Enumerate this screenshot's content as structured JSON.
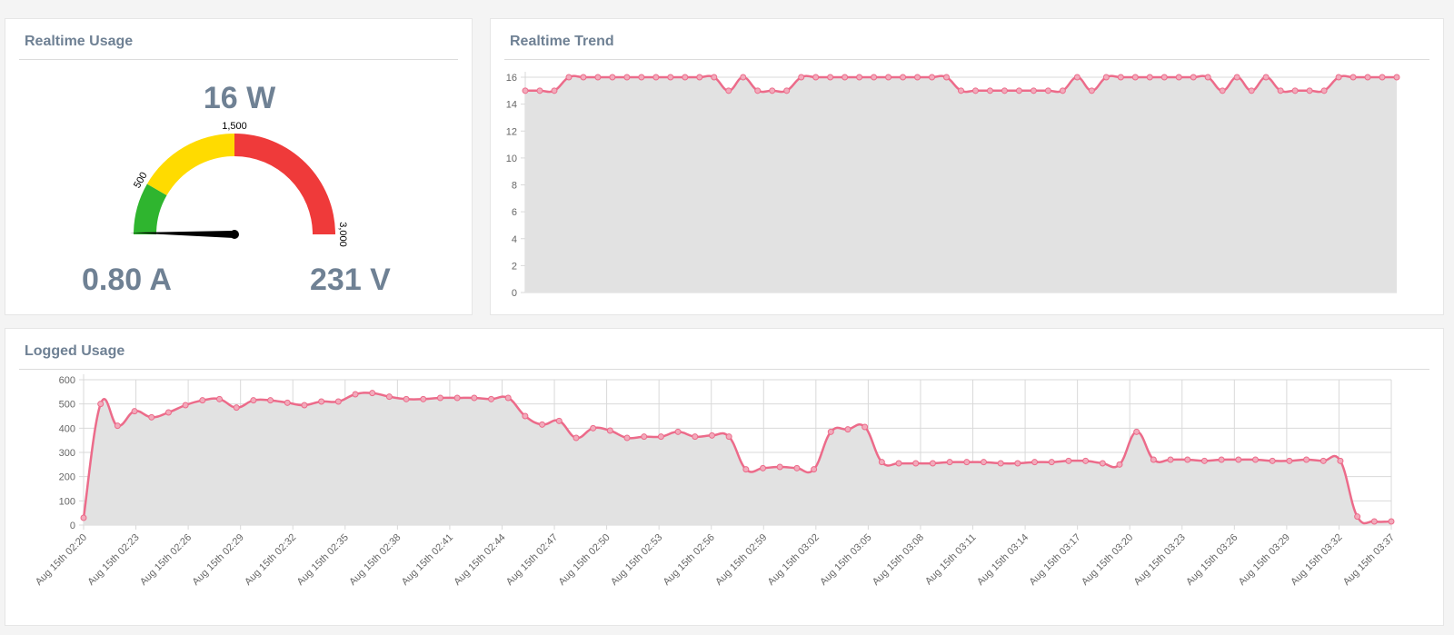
{
  "panels": {
    "usage": {
      "title": "Realtime Usage",
      "power": "16 W",
      "current": "0.80 A",
      "voltage": "231 V",
      "gauge": {
        "min": 0,
        "max": 3000,
        "value": 16,
        "bands": [
          {
            "from": 0,
            "to": 500,
            "color": "#2fb52f"
          },
          {
            "from": 500,
            "to": 1500,
            "color": "#ffdb00"
          },
          {
            "from": 1500,
            "to": 3000,
            "color": "#ef3a3a"
          }
        ],
        "labels": [
          "500",
          "1,500",
          "3,000"
        ]
      }
    },
    "trend": {
      "title": "Realtime Trend"
    },
    "logged": {
      "title": "Logged Usage"
    }
  },
  "colors": {
    "line": "#ec6b8a",
    "fill": "#e2e2e2",
    "grid": "#d9d9d9",
    "title": "#6f8194"
  },
  "chart_data": [
    {
      "type": "area",
      "ylim": [
        0,
        16
      ],
      "yticks": [
        "0",
        "2",
        "4",
        "6",
        "8",
        "10",
        "12",
        "14",
        "16"
      ],
      "values": [
        15,
        15,
        15,
        16,
        16,
        16,
        16,
        16,
        16,
        16,
        16,
        16,
        16,
        16,
        15,
        16,
        15,
        15,
        15,
        16,
        16,
        16,
        16,
        16,
        16,
        16,
        16,
        16,
        16,
        16,
        15,
        15,
        15,
        15,
        15,
        15,
        15,
        15,
        16,
        15,
        16,
        16,
        16,
        16,
        16,
        16,
        16,
        16,
        15,
        16,
        15,
        16,
        15,
        15,
        15,
        15,
        16,
        16,
        16,
        16,
        16
      ]
    },
    {
      "type": "area",
      "ylim": [
        0,
        600
      ],
      "yticks": [
        "0",
        "100",
        "200",
        "300",
        "400",
        "500",
        "600"
      ],
      "xticklabels": [
        "Aug 15th 02:20",
        "Aug 15th 02:23",
        "Aug 15th 02:26",
        "Aug 15th 02:29",
        "Aug 15th 02:32",
        "Aug 15th 02:35",
        "Aug 15th 02:38",
        "Aug 15th 02:41",
        "Aug 15th 02:44",
        "Aug 15th 02:47",
        "Aug 15th 02:50",
        "Aug 15th 02:53",
        "Aug 15th 02:56",
        "Aug 15th 02:59",
        "Aug 15th 03:02",
        "Aug 15th 03:05",
        "Aug 15th 03:08",
        "Aug 15th 03:11",
        "Aug 15th 03:14",
        "Aug 15th 03:17",
        "Aug 15th 03:20",
        "Aug 15th 03:23",
        "Aug 15th 03:26",
        "Aug 15th 03:29",
        "Aug 15th 03:32",
        "Aug 15th 03:37"
      ],
      "values": [
        30,
        500,
        410,
        470,
        445,
        465,
        495,
        515,
        520,
        485,
        515,
        515,
        505,
        495,
        510,
        510,
        540,
        545,
        530,
        520,
        520,
        525,
        525,
        525,
        520,
        525,
        450,
        415,
        430,
        360,
        400,
        390,
        360,
        365,
        365,
        385,
        365,
        370,
        365,
        230,
        235,
        240,
        235,
        230,
        385,
        395,
        405,
        260,
        255,
        255,
        255,
        260,
        260,
        260,
        255,
        255,
        260,
        260,
        265,
        265,
        255,
        250,
        385,
        270,
        270,
        270,
        265,
        270,
        270,
        270,
        265,
        265,
        270,
        265,
        265,
        35,
        15,
        15
      ]
    }
  ]
}
